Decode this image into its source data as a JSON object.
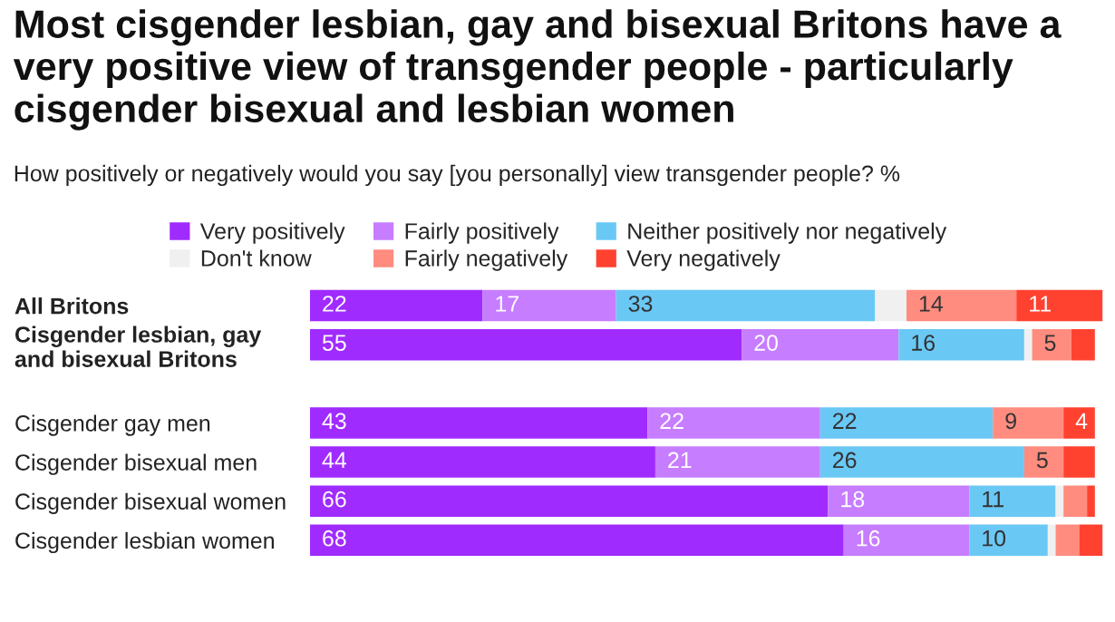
{
  "chart_data": {
    "type": "bar",
    "orientation": "horizontal",
    "stacked": true,
    "title": "Most cisgender lesbian, gay and bisexual Britons have a very positive view of transgender people - particularly cisgender bisexual and lesbian women",
    "subtitle": "How positively or negatively would you say [you personally] view transgender people? %",
    "categories": [
      "All Britons",
      "Cisgender lesbian, gay and bisexual Britons",
      null,
      "Cisgender gay men",
      "Cisgender bisexual men",
      "Cisgender bisexual women",
      "Cisgender lesbian women"
    ],
    "series": [
      {
        "name": "Very positively",
        "color": "#a02bff",
        "values": [
          22,
          55,
          null,
          43,
          44,
          66,
          68
        ],
        "value_labels": [
          "22",
          "55",
          null,
          "43",
          "44",
          "66",
          "68"
        ]
      },
      {
        "name": "Fairly positively",
        "color": "#c77dff",
        "values": [
          17,
          20,
          null,
          22,
          21,
          18,
          16
        ],
        "value_labels": [
          "17",
          "20",
          null,
          "22",
          "21",
          "18",
          "16"
        ]
      },
      {
        "name": "Neither positively nor negatively",
        "color": "#6ac8f5",
        "values": [
          33,
          16,
          null,
          22,
          26,
          11,
          10
        ],
        "value_labels": [
          "33",
          "16",
          null,
          "22",
          "26",
          "11",
          "10"
        ]
      },
      {
        "name": "Don't know",
        "color": "#f0f0f0",
        "values": [
          4,
          1,
          null,
          null,
          null,
          1,
          1
        ],
        "value_labels": [
          null,
          null,
          null,
          null,
          null,
          null,
          null
        ]
      },
      {
        "name": "Fairly negatively",
        "color": "#ff8c7f",
        "values": [
          14,
          5,
          null,
          9,
          5,
          3,
          3
        ],
        "value_labels": [
          "14",
          "5",
          null,
          "9",
          "5",
          null,
          null
        ]
      },
      {
        "name": "Very negatively",
        "color": "#ff4230",
        "values": [
          11,
          3,
          null,
          4,
          4,
          1,
          3
        ],
        "value_labels": [
          "11",
          null,
          null,
          "4",
          null,
          null,
          null
        ]
      }
    ],
    "legend": "top",
    "grid": false
  }
}
